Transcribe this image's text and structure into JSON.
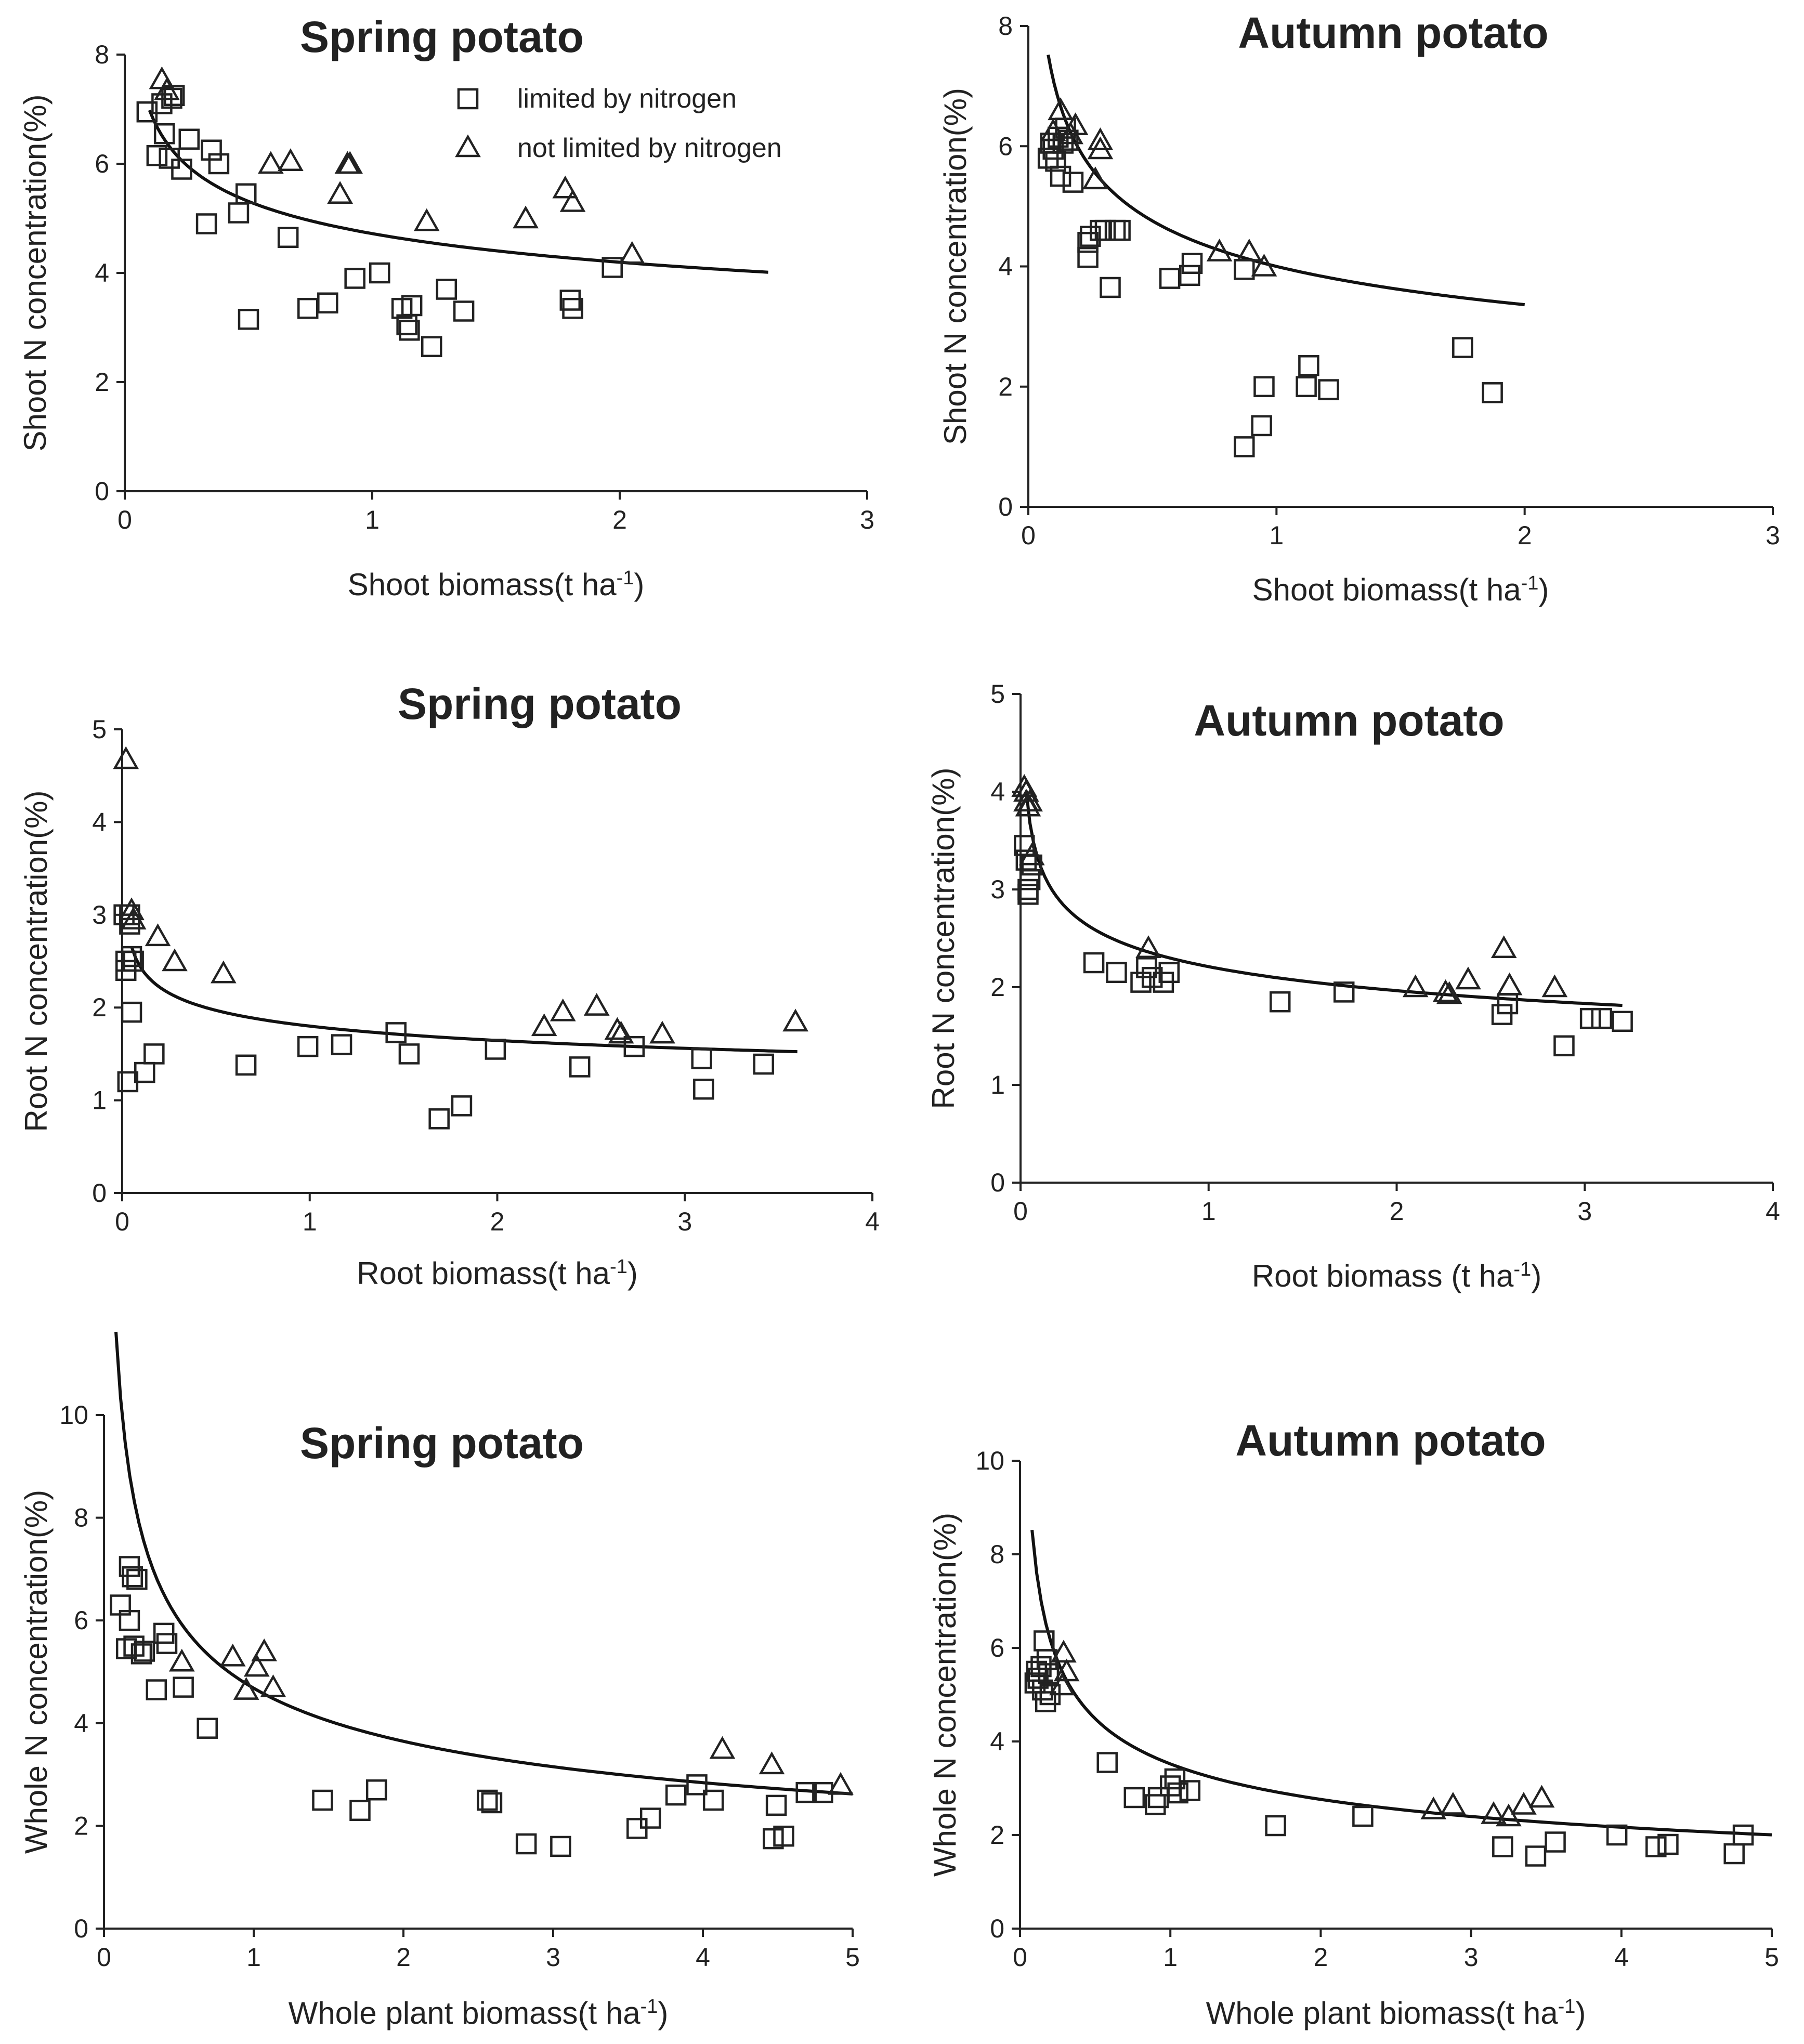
{
  "legend": {
    "limited": "limited by nitrogen",
    "not_limited": "not limited by nitrogen"
  },
  "colors": {
    "ink": "#222222",
    "background": "#ffffff"
  },
  "chart_data": [
    {
      "id": "shoot-spring",
      "type": "scatter",
      "title": "Spring potato",
      "xlabel": "Shoot biomass(t ha",
      "ylabel": "Shoot N concentration(%)",
      "unit_sup": "-1",
      "unit_close": ")",
      "xlim": [
        0,
        3
      ],
      "ylim": [
        0,
        8
      ],
      "xticks": [
        0,
        1,
        2,
        3
      ],
      "yticks": [
        0,
        2,
        4,
        6,
        8
      ],
      "legend_position": "top-right",
      "curve": {
        "a": 4.72,
        "b": 0.17,
        "x_range": [
          0.1,
          2.6
        ]
      },
      "series": [
        {
          "name": "limited by nitrogen",
          "marker": "square",
          "x": [
            0.09,
            0.13,
            0.15,
            0.16,
            0.18,
            0.19,
            0.2,
            0.23,
            0.26,
            0.33,
            0.35,
            0.38,
            0.46,
            0.49,
            0.5,
            0.66,
            0.74,
            0.82,
            0.93,
            1.03,
            1.12,
            1.14,
            1.15,
            1.16,
            1.24,
            1.3,
            1.37,
            1.8,
            1.81,
            1.97
          ],
          "y": [
            6.95,
            6.15,
            7.1,
            6.55,
            6.1,
            7.2,
            7.25,
            5.9,
            6.45,
            4.9,
            6.25,
            6.0,
            5.1,
            5.45,
            3.15,
            4.65,
            3.35,
            3.45,
            3.9,
            4.0,
            3.35,
            3.05,
            2.95,
            3.4,
            2.65,
            3.7,
            3.3,
            3.5,
            3.35,
            4.1
          ]
        },
        {
          "name": "not limited by nitrogen",
          "marker": "triangle",
          "x": [
            0.15,
            0.17,
            0.59,
            0.67,
            0.87,
            0.9,
            0.91,
            1.22,
            1.62,
            1.78,
            1.81,
            2.05
          ],
          "y": [
            7.55,
            7.35,
            6.0,
            6.05,
            5.45,
            6.0,
            6.0,
            4.95,
            5.0,
            5.55,
            5.3,
            4.35
          ]
        }
      ]
    },
    {
      "id": "shoot-autumn",
      "type": "scatter",
      "title": "Autumn potato",
      "xlabel": "Shoot biomass(t ha",
      "ylabel": "Shoot N concentration(%)",
      "unit_sup": "-1",
      "unit_close": ")",
      "xlim": [
        0,
        3
      ],
      "ylim": [
        0,
        8
      ],
      "xticks": [
        0,
        1,
        2,
        3
      ],
      "yticks": [
        0,
        2,
        4,
        6,
        8
      ],
      "curve": {
        "a": 4.0,
        "b": 0.25,
        "x_range": [
          0.08,
          2.0
        ]
      },
      "series": [
        {
          "name": "limited by nitrogen",
          "marker": "square",
          "x": [
            0.08,
            0.09,
            0.1,
            0.11,
            0.12,
            0.13,
            0.14,
            0.15,
            0.16,
            0.18,
            0.24,
            0.24,
            0.25,
            0.29,
            0.31,
            0.33,
            0.35,
            0.37,
            0.57,
            0.65,
            0.66,
            0.87,
            0.87,
            0.94,
            0.95,
            1.12,
            1.13,
            1.21,
            1.75,
            1.87
          ],
          "y": [
            5.8,
            6.05,
            5.95,
            5.75,
            6.15,
            5.5,
            6.05,
            6.3,
            6.1,
            5.4,
            4.4,
            4.15,
            4.5,
            4.6,
            4.6,
            3.65,
            4.6,
            4.6,
            3.8,
            3.85,
            4.05,
            3.95,
            1.0,
            1.35,
            2.0,
            2.0,
            2.35,
            1.95,
            2.65,
            1.9
          ]
        },
        {
          "name": "not limited by nitrogen",
          "marker": "triangle",
          "x": [
            0.1,
            0.13,
            0.17,
            0.19,
            0.27,
            0.29,
            0.29,
            0.77,
            0.89,
            0.95
          ],
          "y": [
            6.25,
            6.6,
            6.2,
            6.35,
            5.45,
            5.95,
            6.1,
            4.25,
            4.25,
            4.0
          ]
        }
      ]
    },
    {
      "id": "root-spring",
      "type": "scatter",
      "title": "Spring potato",
      "xlabel": "Root biomass(t ha",
      "ylabel": "Root N concentration(%)",
      "unit_sup": "-1",
      "unit_close": ")",
      "xlim": [
        0,
        4
      ],
      "ylim": [
        0,
        5
      ],
      "xticks": [
        0,
        1,
        2,
        3,
        4
      ],
      "yticks": [
        0,
        1,
        2,
        3,
        4,
        5
      ],
      "curve": {
        "a": 1.8,
        "b": 0.13,
        "x_range": [
          0.05,
          3.6
        ]
      },
      "series": [
        {
          "name": "limited by nitrogen",
          "marker": "square",
          "x": [
            0.01,
            0.02,
            0.02,
            0.03,
            0.04,
            0.04,
            0.05,
            0.05,
            0.06,
            0.12,
            0.17,
            0.66,
            0.99,
            1.17,
            1.46,
            1.53,
            1.69,
            1.81,
            1.99,
            2.44,
            2.73,
            3.09,
            3.1,
            3.42
          ],
          "y": [
            3.0,
            2.4,
            2.5,
            1.2,
            2.9,
            3.0,
            2.55,
            1.95,
            2.5,
            1.3,
            1.5,
            1.38,
            1.58,
            1.6,
            1.73,
            1.5,
            0.8,
            0.94,
            1.55,
            1.36,
            1.58,
            1.45,
            1.12,
            1.39
          ]
        },
        {
          "name": "not limited by nitrogen",
          "marker": "triangle",
          "x": [
            0.02,
            0.05,
            0.06,
            0.19,
            0.28,
            0.54,
            2.25,
            2.35,
            2.53,
            2.64,
            2.66,
            2.88,
            3.59
          ],
          "y": [
            4.68,
            3.05,
            2.95,
            2.77,
            2.5,
            2.37,
            1.8,
            1.96,
            2.02,
            1.76,
            1.72,
            1.72,
            1.85
          ]
        }
      ]
    },
    {
      "id": "root-autumn",
      "type": "scatter",
      "title": "Autumn potato",
      "xlabel": "Root biomass (t ha",
      "ylabel": "Root N concentration(%)",
      "unit_sup": "-1",
      "unit_close": ")",
      "xlim": [
        0,
        4
      ],
      "ylim": [
        0,
        5
      ],
      "xticks": [
        0,
        1,
        2,
        3,
        4
      ],
      "yticks": [
        0,
        1,
        2,
        3,
        4,
        5
      ],
      "curve": {
        "a": 2.21,
        "b": 0.17,
        "x_range": [
          0.03,
          3.2
        ]
      },
      "series": [
        {
          "name": "limited by nitrogen",
          "marker": "square",
          "x": [
            0.02,
            0.03,
            0.04,
            0.04,
            0.05,
            0.06,
            0.39,
            0.51,
            0.64,
            0.67,
            0.7,
            0.76,
            0.79,
            1.38,
            1.72,
            2.56,
            2.59,
            2.89,
            3.03,
            3.09,
            3.2
          ],
          "y": [
            3.45,
            3.3,
            3.0,
            2.95,
            3.1,
            3.25,
            2.25,
            2.15,
            2.05,
            2.2,
            2.1,
            2.05,
            2.15,
            1.85,
            1.95,
            1.72,
            1.83,
            1.4,
            1.68,
            1.68,
            1.65
          ]
        },
        {
          "name": "not limited by nitrogen",
          "marker": "triangle",
          "x": [
            0.02,
            0.03,
            0.03,
            0.04,
            0.05,
            0.06,
            0.68,
            2.1,
            2.26,
            2.28,
            2.38,
            2.57,
            2.6,
            2.84
          ],
          "y": [
            4.05,
            3.9,
            4.0,
            3.85,
            3.9,
            3.35,
            2.4,
            2.0,
            1.95,
            1.93,
            2.08,
            2.4,
            2.02,
            2.0
          ]
        }
      ]
    },
    {
      "id": "whole-spring",
      "type": "scatter",
      "title": "Spring potato",
      "xlabel": "Whole plant biomass(t ha",
      "ylabel": "Whole N concentration(%)",
      "unit_sup": "-1",
      "unit_close": ")",
      "xlim": [
        0,
        5
      ],
      "ylim": [
        0,
        10
      ],
      "xticks": [
        0,
        1,
        2,
        3,
        4,
        5
      ],
      "yticks": [
        0,
        2,
        4,
        6,
        8,
        10
      ],
      "curve": {
        "a": 4.68,
        "b": 0.36,
        "x_range": [
          0.08,
          5.0
        ]
      },
      "series": [
        {
          "name": "limited by nitrogen",
          "marker": "square",
          "x": [
            0.11,
            0.15,
            0.17,
            0.17,
            0.19,
            0.2,
            0.22,
            0.25,
            0.27,
            0.35,
            0.4,
            0.42,
            0.53,
            0.69,
            1.46,
            1.71,
            1.82,
            2.56,
            2.59,
            2.82,
            3.05,
            3.56,
            3.65,
            3.82,
            3.96,
            4.07,
            4.47,
            4.49,
            4.54,
            4.69,
            4.8
          ],
          "y": [
            6.3,
            5.45,
            7.05,
            6.0,
            6.85,
            5.5,
            6.8,
            5.35,
            5.4,
            4.65,
            5.75,
            5.55,
            4.7,
            3.9,
            2.5,
            2.3,
            2.7,
            2.5,
            2.45,
            1.65,
            1.6,
            1.95,
            2.15,
            2.6,
            2.8,
            2.5,
            1.75,
            2.4,
            1.8,
            2.65,
            2.65
          ]
        },
        {
          "name": "not limited by nitrogen",
          "marker": "triangle",
          "x": [
            0.52,
            0.86,
            0.95,
            1.02,
            1.07,
            1.13,
            4.13,
            4.46,
            4.92
          ],
          "y": [
            5.2,
            5.3,
            4.65,
            5.1,
            5.4,
            4.7,
            3.5,
            3.2,
            2.8
          ]
        }
      ]
    },
    {
      "id": "whole-autumn",
      "type": "scatter",
      "title": "Autumn potato",
      "xlabel": "Whole plant biomass(t ha",
      "ylabel": "Whole N concentration(%)",
      "unit_sup": "-1",
      "unit_close": ")",
      "xlim": [
        0,
        5
      ],
      "ylim": [
        0,
        10
      ],
      "xticks": [
        0,
        1,
        2,
        3,
        4,
        5
      ],
      "yticks": [
        0,
        2,
        4,
        6,
        8,
        10
      ],
      "curve": {
        "a": 3.52,
        "b": 0.35,
        "x_range": [
          0.08,
          5.0
        ]
      },
      "series": [
        {
          "name": "limited by nitrogen",
          "marker": "square",
          "x": [
            0.1,
            0.11,
            0.12,
            0.14,
            0.15,
            0.16,
            0.17,
            0.18,
            0.19,
            0.2,
            0.58,
            0.76,
            0.9,
            0.92,
            1.0,
            1.03,
            1.05,
            1.13,
            1.7,
            2.28,
            3.21,
            3.43,
            3.56,
            3.97,
            4.23,
            4.31,
            4.75,
            4.81
          ],
          "y": [
            5.25,
            5.5,
            5.35,
            5.6,
            5.1,
            6.15,
            4.85,
            5.75,
            5.45,
            5.0,
            3.55,
            2.8,
            2.65,
            2.8,
            3.05,
            3.2,
            2.9,
            2.95,
            2.2,
            2.4,
            1.75,
            1.55,
            1.85,
            2.0,
            1.75,
            1.8,
            1.6,
            2.0
          ]
        },
        {
          "name": "not limited by nitrogen",
          "marker": "triangle",
          "x": [
            0.28,
            0.29,
            0.31,
            2.75,
            2.88,
            3.15,
            3.25,
            3.35,
            3.47
          ],
          "y": [
            5.2,
            5.9,
            5.5,
            2.55,
            2.65,
            2.45,
            2.4,
            2.65,
            2.8
          ]
        }
      ]
    }
  ]
}
